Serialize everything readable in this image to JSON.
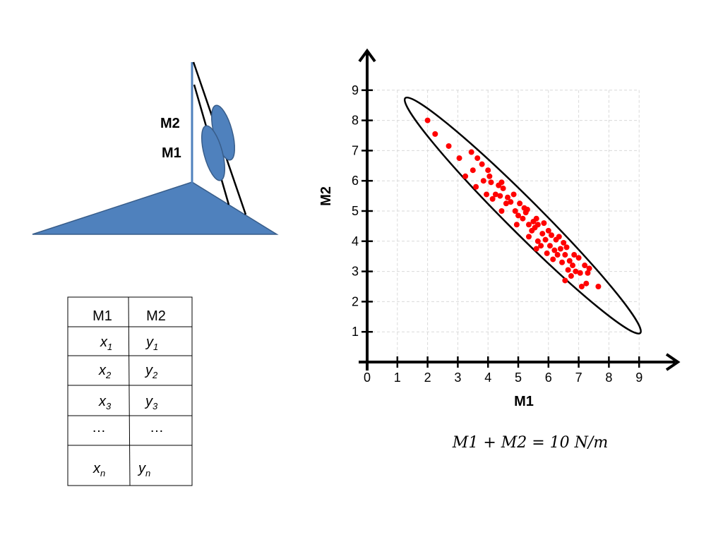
{
  "diagram": {
    "label_m2": "M2",
    "label_m1": "M1"
  },
  "table": {
    "headers": [
      "M1",
      "M2"
    ],
    "rows": [
      {
        "a": "x",
        "a_sub": "1",
        "b": "y",
        "b_sub": "1"
      },
      {
        "a": "x",
        "a_sub": "2",
        "b": "y",
        "b_sub": "2"
      },
      {
        "a": "x",
        "a_sub": "3",
        "b": "y",
        "b_sub": "3"
      },
      {
        "a": "…",
        "a_sub": "",
        "b": "…",
        "b_sub": ""
      },
      {
        "a": "x",
        "a_sub": "n",
        "b": "y",
        "b_sub": "n"
      }
    ]
  },
  "equation": "M1 + M2 = 10 N/m",
  "colors": {
    "diagram_fill": "#4f81bd",
    "diagram_stroke": "#385d8a",
    "point": "#ff0000",
    "grid": "#d9d9d9"
  },
  "chart_data": {
    "type": "scatter",
    "title": "",
    "xlabel": "M1",
    "ylabel": "M2",
    "xlim": [
      0,
      9
    ],
    "ylim": [
      0,
      9
    ],
    "xticks": [
      0,
      1,
      2,
      3,
      4,
      5,
      6,
      7,
      8,
      9
    ],
    "yticks": [
      1,
      2,
      3,
      4,
      5,
      6,
      7,
      8,
      9
    ],
    "grid": true,
    "ellipse_outline": {
      "center": [
        5.15,
        4.85
      ],
      "angle_deg": -45,
      "semi_major": 5.5,
      "semi_minor": 0.55
    },
    "series": [
      {
        "points": [
          [
            2.0,
            8.0
          ],
          [
            2.25,
            7.55
          ],
          [
            2.7,
            7.15
          ],
          [
            3.05,
            6.75
          ],
          [
            3.25,
            6.15
          ],
          [
            3.45,
            6.95
          ],
          [
            3.5,
            6.35
          ],
          [
            3.6,
            5.8
          ],
          [
            3.65,
            6.75
          ],
          [
            3.8,
            6.55
          ],
          [
            3.85,
            6.0
          ],
          [
            3.95,
            5.55
          ],
          [
            4.0,
            6.35
          ],
          [
            4.05,
            6.15
          ],
          [
            4.1,
            5.95
          ],
          [
            4.15,
            5.4
          ],
          [
            4.25,
            5.55
          ],
          [
            4.35,
            5.85
          ],
          [
            4.4,
            5.5
          ],
          [
            4.45,
            5.95
          ],
          [
            4.5,
            5.75
          ],
          [
            4.45,
            5.0
          ],
          [
            4.6,
            5.25
          ],
          [
            4.65,
            5.45
          ],
          [
            4.75,
            5.3
          ],
          [
            4.85,
            5.55
          ],
          [
            4.9,
            5.0
          ],
          [
            4.95,
            4.55
          ],
          [
            5.0,
            4.85
          ],
          [
            5.05,
            5.25
          ],
          [
            5.15,
            4.75
          ],
          [
            5.2,
            5.1
          ],
          [
            5.25,
            4.95
          ],
          [
            5.3,
            5.05
          ],
          [
            5.35,
            4.55
          ],
          [
            5.35,
            4.15
          ],
          [
            5.45,
            4.35
          ],
          [
            5.5,
            4.65
          ],
          [
            5.55,
            4.45
          ],
          [
            5.6,
            4.75
          ],
          [
            5.65,
            4.55
          ],
          [
            5.65,
            4.0
          ],
          [
            5.6,
            3.75
          ],
          [
            5.75,
            3.85
          ],
          [
            5.8,
            4.25
          ],
          [
            5.85,
            4.6
          ],
          [
            5.9,
            4.05
          ],
          [
            5.95,
            3.6
          ],
          [
            6.0,
            4.35
          ],
          [
            6.05,
            3.85
          ],
          [
            6.1,
            4.2
          ],
          [
            6.15,
            3.4
          ],
          [
            6.2,
            3.7
          ],
          [
            6.25,
            4.05
          ],
          [
            6.3,
            3.55
          ],
          [
            6.35,
            4.15
          ],
          [
            6.4,
            3.75
          ],
          [
            6.45,
            3.3
          ],
          [
            6.5,
            3.95
          ],
          [
            6.55,
            3.55
          ],
          [
            6.55,
            2.7
          ],
          [
            6.6,
            3.8
          ],
          [
            6.65,
            3.05
          ],
          [
            6.7,
            3.35
          ],
          [
            6.75,
            2.85
          ],
          [
            6.8,
            3.2
          ],
          [
            6.85,
            3.55
          ],
          [
            6.9,
            3.0
          ],
          [
            7.0,
            3.45
          ],
          [
            7.05,
            2.95
          ],
          [
            7.1,
            2.5
          ],
          [
            7.2,
            3.2
          ],
          [
            7.25,
            2.6
          ],
          [
            7.3,
            2.95
          ],
          [
            7.35,
            3.1
          ],
          [
            7.65,
            2.5
          ]
        ]
      }
    ]
  }
}
